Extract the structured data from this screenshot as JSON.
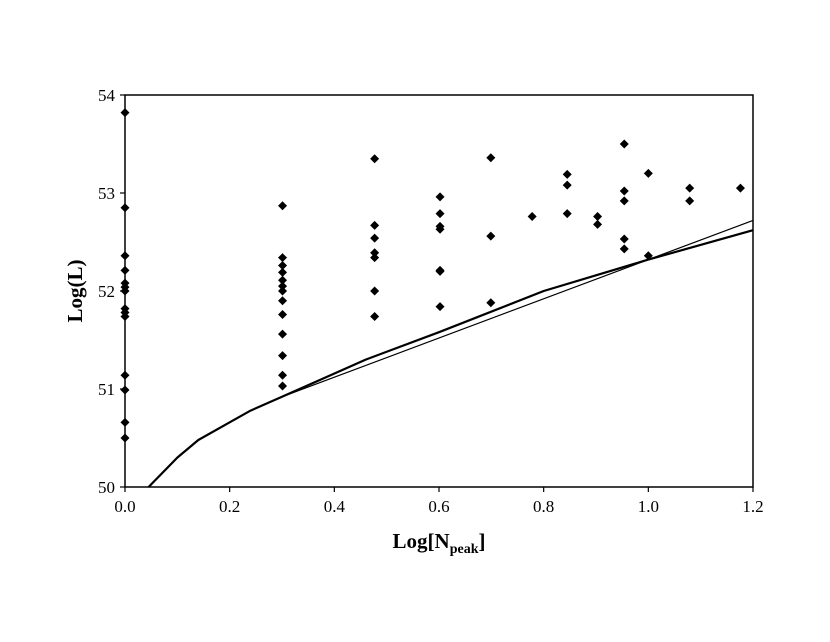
{
  "chart_data": {
    "type": "scatter",
    "title": "",
    "xlabel": "Log[N",
    "xlabel_subscript": "peak",
    "xlabel_close": "]",
    "ylabel": "Log(L)",
    "xlim": [
      0.0,
      1.2
    ],
    "ylim": [
      50,
      54
    ],
    "xticks": [
      "0.0",
      "0.2",
      "0.4",
      "0.6",
      "0.8",
      "1.0",
      "1.2"
    ],
    "yticks": [
      "50",
      "51",
      "52",
      "53",
      "54"
    ],
    "grid": false,
    "legend": "none",
    "colors": {
      "marker": "#000000",
      "line": "#000000",
      "frame": "#000000"
    },
    "series": [
      {
        "kind": "scatter",
        "points": [
          [
            0.0,
            53.82
          ],
          [
            0.0,
            52.85
          ],
          [
            0.0,
            52.36
          ],
          [
            0.0,
            52.21
          ],
          [
            0.0,
            52.08
          ],
          [
            0.0,
            52.04
          ],
          [
            0.0,
            52.0
          ],
          [
            0.0,
            51.82
          ],
          [
            0.0,
            51.78
          ],
          [
            0.0,
            51.74
          ],
          [
            0.0,
            51.14
          ],
          [
            0.0,
            50.99
          ],
          [
            0.0,
            50.66
          ],
          [
            0.0,
            50.5
          ],
          [
            0.301,
            52.87
          ],
          [
            0.301,
            52.34
          ],
          [
            0.301,
            52.26
          ],
          [
            0.301,
            52.19
          ],
          [
            0.301,
            52.11
          ],
          [
            0.301,
            52.05
          ],
          [
            0.301,
            52.0
          ],
          [
            0.301,
            51.9
          ],
          [
            0.301,
            51.76
          ],
          [
            0.301,
            51.56
          ],
          [
            0.301,
            51.34
          ],
          [
            0.301,
            51.14
          ],
          [
            0.301,
            51.03
          ],
          [
            0.477,
            53.35
          ],
          [
            0.477,
            52.67
          ],
          [
            0.477,
            52.54
          ],
          [
            0.477,
            52.39
          ],
          [
            0.477,
            52.34
          ],
          [
            0.477,
            52.0
          ],
          [
            0.477,
            51.74
          ],
          [
            0.602,
            52.96
          ],
          [
            0.602,
            52.79
          ],
          [
            0.602,
            52.66
          ],
          [
            0.602,
            52.63
          ],
          [
            0.602,
            52.21
          ],
          [
            0.602,
            52.2
          ],
          [
            0.602,
            51.84
          ],
          [
            0.699,
            53.36
          ],
          [
            0.699,
            52.56
          ],
          [
            0.699,
            51.88
          ],
          [
            0.778,
            52.76
          ],
          [
            0.845,
            53.19
          ],
          [
            0.845,
            53.08
          ],
          [
            0.845,
            52.79
          ],
          [
            0.903,
            52.76
          ],
          [
            0.903,
            52.68
          ],
          [
            0.954,
            53.5
          ],
          [
            0.954,
            53.02
          ],
          [
            0.954,
            52.92
          ],
          [
            0.954,
            52.53
          ],
          [
            0.954,
            52.43
          ],
          [
            1.0,
            53.2
          ],
          [
            1.0,
            52.36
          ],
          [
            1.079,
            53.05
          ],
          [
            1.079,
            52.92
          ],
          [
            1.176,
            53.05
          ]
        ]
      },
      {
        "kind": "line",
        "weight": "thick",
        "points": [
          [
            0.045,
            50.0
          ],
          [
            0.1,
            50.3
          ],
          [
            0.14,
            50.48
          ],
          [
            0.2,
            50.66
          ],
          [
            0.24,
            50.78
          ],
          [
            0.3,
            50.92
          ],
          [
            0.46,
            51.3
          ],
          [
            0.6,
            51.58
          ],
          [
            0.8,
            52.0
          ],
          [
            1.0,
            52.32
          ],
          [
            1.2,
            52.62
          ]
        ]
      },
      {
        "kind": "line",
        "weight": "thin",
        "points": [
          [
            0.3,
            50.92
          ],
          [
            1.2,
            52.72
          ]
        ]
      }
    ]
  }
}
